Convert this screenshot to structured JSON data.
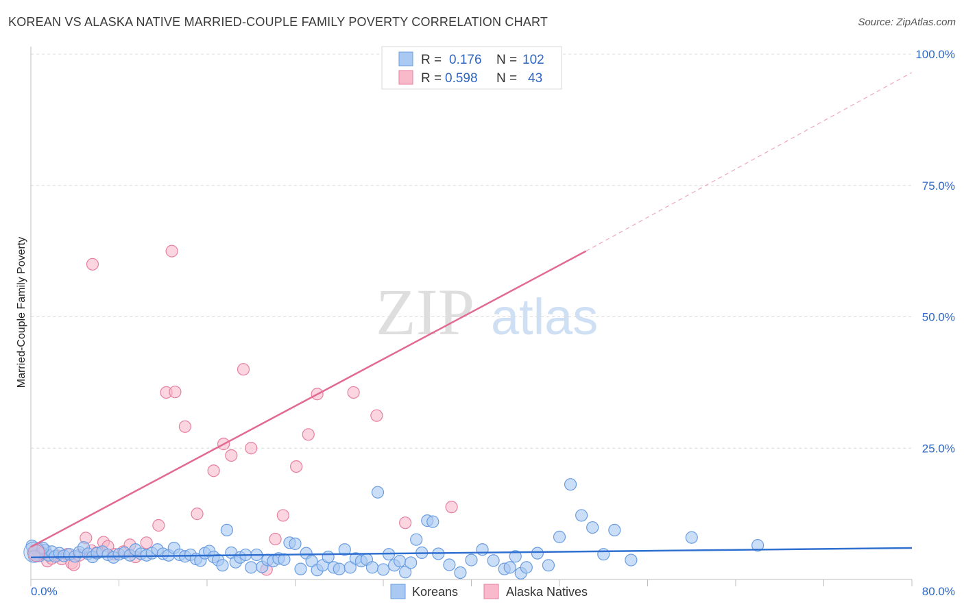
{
  "header": {
    "title": "KOREAN VS ALASKA NATIVE MARRIED-COUPLE FAMILY POVERTY CORRELATION CHART",
    "source": "Source: ZipAtlas.com"
  },
  "watermark": {
    "zip": "ZIP",
    "atlas": "atlas"
  },
  "legend": {
    "r_label": "R =",
    "n_label": "N =",
    "rows": [
      {
        "name": "Koreans",
        "r": "0.176",
        "n": "102",
        "color": "#a9c8f2"
      },
      {
        "name": "Alaska Natives",
        "r": "0.598",
        "n": "43",
        "color": "#f8b9ca"
      }
    ]
  },
  "chart_data": {
    "type": "scatter",
    "title": "KOREAN VS ALASKA NATIVE MARRIED-COUPLE FAMILY POVERTY CORRELATION CHART",
    "xlabel": "",
    "ylabel": "Married-Couple Family Poverty",
    "xlim": [
      0,
      80
    ],
    "ylim": [
      0,
      100
    ],
    "x_tick_labels": [
      "0.0%",
      "80.0%"
    ],
    "y_ticks": [
      25,
      50,
      75,
      100
    ],
    "y_tick_labels": [
      "25.0%",
      "50.0%",
      "75.0%",
      "100.0%"
    ],
    "grid": true,
    "legend_position": "top-center",
    "series": [
      {
        "name": "Koreans",
        "color": "#a9c8f2",
        "stroke": "#6a9de0",
        "trend": {
          "x0": 0,
          "y0": 4.2,
          "x1": 80,
          "y1": 6.0,
          "color": "#2f6fd0"
        },
        "points": [
          [
            0.2,
            5.2
          ],
          [
            0.4,
            4.8
          ],
          [
            0.6,
            5.5
          ],
          [
            0.8,
            4.5
          ],
          [
            1.0,
            5.0
          ],
          [
            1.3,
            5.6
          ],
          [
            1.6,
            4.6
          ],
          [
            1.9,
            5.3
          ],
          [
            2.2,
            4.4
          ],
          [
            2.6,
            5.0
          ],
          [
            3.0,
            4.5
          ],
          [
            3.5,
            4.8
          ],
          [
            4.0,
            4.4
          ],
          [
            4.4,
            5.2
          ],
          [
            4.8,
            6.1
          ],
          [
            5.2,
            4.9
          ],
          [
            5.6,
            4.3
          ],
          [
            6.0,
            5.0
          ],
          [
            6.5,
            5.3
          ],
          [
            7.0,
            4.7
          ],
          [
            7.5,
            4.2
          ],
          [
            8.0,
            4.8
          ],
          [
            8.5,
            5.1
          ],
          [
            9.0,
            4.6
          ],
          [
            9.5,
            5.7
          ],
          [
            10.0,
            4.9
          ],
          [
            10.5,
            4.6
          ],
          [
            11.0,
            5.0
          ],
          [
            11.5,
            5.7
          ],
          [
            12.0,
            4.9
          ],
          [
            12.5,
            4.6
          ],
          [
            13.0,
            6.0
          ],
          [
            13.5,
            4.7
          ],
          [
            14.0,
            4.4
          ],
          [
            14.5,
            4.7
          ],
          [
            15.0,
            3.9
          ],
          [
            15.4,
            3.6
          ],
          [
            15.8,
            5.0
          ],
          [
            16.2,
            5.4
          ],
          [
            16.6,
            4.3
          ],
          [
            17.0,
            3.7
          ],
          [
            17.4,
            2.7
          ],
          [
            17.8,
            9.4
          ],
          [
            18.2,
            5.1
          ],
          [
            18.6,
            3.3
          ],
          [
            19.0,
            4.2
          ],
          [
            19.5,
            4.7
          ],
          [
            20.0,
            2.3
          ],
          [
            20.5,
            4.7
          ],
          [
            21.0,
            2.4
          ],
          [
            21.5,
            3.7
          ],
          [
            22.0,
            3.5
          ],
          [
            22.5,
            4.0
          ],
          [
            23.0,
            3.8
          ],
          [
            23.5,
            7.0
          ],
          [
            24.0,
            6.8
          ],
          [
            24.5,
            2.0
          ],
          [
            25.0,
            5.0
          ],
          [
            25.5,
            3.5
          ],
          [
            26.0,
            1.8
          ],
          [
            26.5,
            2.7
          ],
          [
            27.0,
            4.3
          ],
          [
            27.5,
            2.3
          ],
          [
            28.0,
            2.0
          ],
          [
            28.5,
            5.7
          ],
          [
            29.0,
            2.3
          ],
          [
            29.5,
            4.0
          ],
          [
            30.0,
            3.5
          ],
          [
            30.5,
            3.8
          ],
          [
            31.0,
            2.3
          ],
          [
            31.5,
            16.6
          ],
          [
            32.0,
            1.9
          ],
          [
            32.5,
            4.8
          ],
          [
            33.0,
            2.7
          ],
          [
            33.5,
            3.5
          ],
          [
            34.0,
            1.4
          ],
          [
            34.5,
            3.2
          ],
          [
            35.0,
            7.6
          ],
          [
            35.5,
            5.1
          ],
          [
            36.0,
            11.2
          ],
          [
            36.5,
            11.0
          ],
          [
            37.0,
            4.9
          ],
          [
            38.0,
            2.8
          ],
          [
            39.0,
            1.3
          ],
          [
            40.0,
            3.7
          ],
          [
            41.0,
            5.7
          ],
          [
            42.0,
            3.6
          ],
          [
            43.0,
            2.0
          ],
          [
            43.5,
            2.3
          ],
          [
            44.0,
            4.4
          ],
          [
            44.5,
            1.2
          ],
          [
            45.0,
            2.3
          ],
          [
            46.0,
            5.0
          ],
          [
            47.0,
            2.7
          ],
          [
            48.0,
            8.1
          ],
          [
            49.0,
            18.1
          ],
          [
            50.0,
            12.2
          ],
          [
            51.0,
            9.9
          ],
          [
            52.0,
            4.8
          ],
          [
            53.0,
            9.4
          ],
          [
            54.5,
            3.7
          ],
          [
            60.0,
            8.0
          ],
          [
            66.0,
            6.5
          ],
          [
            0.1,
            6.4
          ],
          [
            0.3,
            4.4
          ],
          [
            1.1,
            6.0
          ]
        ]
      },
      {
        "name": "Alaska Natives",
        "color": "#f8b9ca",
        "stroke": "#e77fa0",
        "trend": {
          "x0": 0,
          "y0": 6.2,
          "x1": 50.4,
          "y1": 62.5,
          "ext_x1": 80,
          "ext_y1": 96.5,
          "color": "#e26a92"
        },
        "points": [
          [
            0.3,
            5.5
          ],
          [
            0.7,
            5.9
          ],
          [
            1.1,
            5.0
          ],
          [
            1.5,
            3.5
          ],
          [
            1.9,
            4.0
          ],
          [
            2.4,
            4.5
          ],
          [
            2.8,
            3.9
          ],
          [
            3.3,
            4.8
          ],
          [
            3.7,
            3.1
          ],
          [
            3.9,
            2.8
          ],
          [
            4.4,
            4.6
          ],
          [
            5.0,
            7.9
          ],
          [
            5.5,
            5.5
          ],
          [
            6.0,
            5.1
          ],
          [
            6.6,
            7.1
          ],
          [
            7.0,
            6.3
          ],
          [
            7.6,
            4.8
          ],
          [
            8.4,
            5.3
          ],
          [
            9.0,
            6.6
          ],
          [
            9.5,
            4.3
          ],
          [
            10.5,
            7.0
          ],
          [
            11.6,
            10.3
          ],
          [
            12.3,
            35.6
          ],
          [
            13.1,
            35.7
          ],
          [
            14.0,
            29.1
          ],
          [
            15.1,
            12.5
          ],
          [
            16.6,
            20.7
          ],
          [
            17.5,
            25.8
          ],
          [
            18.2,
            23.6
          ],
          [
            19.3,
            40.0
          ],
          [
            20.0,
            25.0
          ],
          [
            21.4,
            1.9
          ],
          [
            22.2,
            7.7
          ],
          [
            22.9,
            12.2
          ],
          [
            24.1,
            21.5
          ],
          [
            25.2,
            27.6
          ],
          [
            26.0,
            35.3
          ],
          [
            29.3,
            35.6
          ],
          [
            31.4,
            31.2
          ],
          [
            34.0,
            10.8
          ],
          [
            38.2,
            13.8
          ],
          [
            5.6,
            60.0
          ],
          [
            12.8,
            62.5
          ]
        ]
      }
    ]
  }
}
